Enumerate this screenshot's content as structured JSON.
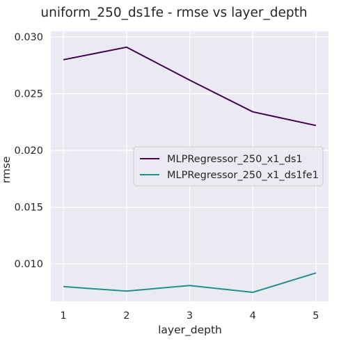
{
  "chart_data": {
    "type": "line",
    "title": "uniform_250_ds1fe - rmse vs layer_depth",
    "xlabel": "layer_depth",
    "ylabel": "rmse",
    "x": [
      1,
      2,
      3,
      4,
      5
    ],
    "x_ticks": [
      "1",
      "2",
      "3",
      "4",
      "5"
    ],
    "xlim": [
      0.8,
      5.2
    ],
    "ylim": [
      0.0067,
      0.0305
    ],
    "y_ticks": [
      "0.010",
      "0.015",
      "0.020",
      "0.025",
      "0.030"
    ],
    "y_tick_values": [
      0.01,
      0.015,
      0.02,
      0.025,
      0.03
    ],
    "grid": true,
    "legend_position": "center-right",
    "series": [
      {
        "name": "MLPRegressor_250_x1_ds1",
        "values": [
          0.028,
          0.0291,
          0.0262,
          0.0234,
          0.0222
        ],
        "color": "#440154"
      },
      {
        "name": "MLPRegressor_250_x1_ds1fe1",
        "values": [
          0.008,
          0.0076,
          0.0081,
          0.0075,
          0.0092
        ],
        "color": "#21908d"
      }
    ],
    "colors": {
      "plot_background": "#eaeaf2",
      "grid": "#ffffff"
    }
  }
}
